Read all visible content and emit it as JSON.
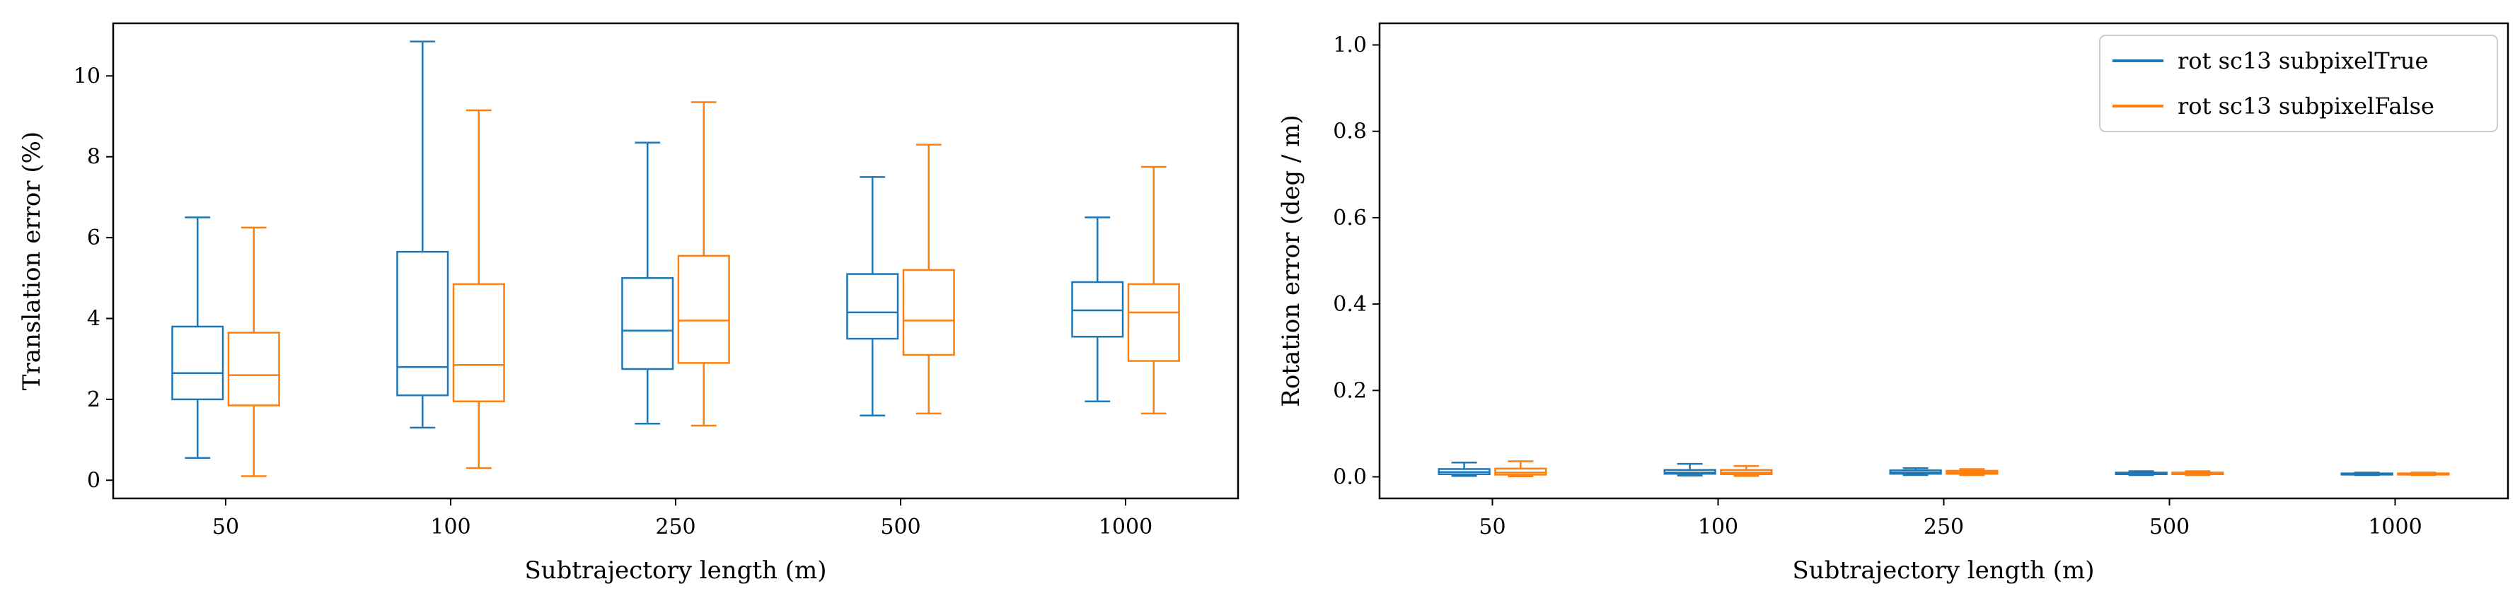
{
  "chart_data": [
    {
      "type": "box",
      "xlabel": "Subtrajectory length (m)",
      "ylabel": "Translation error (%)",
      "categories": [
        "50",
        "100",
        "250",
        "500",
        "1000"
      ],
      "ylim": [
        -0.45,
        11.3
      ],
      "yticks": [
        0,
        2,
        4,
        6,
        8,
        10
      ],
      "grid": false,
      "series": [
        {
          "color": "#1f77b4",
          "boxes": [
            {
              "min": 0.55,
              "q1": 2.0,
              "median": 2.65,
              "q3": 3.8,
              "max": 6.5
            },
            {
              "min": 1.3,
              "q1": 2.1,
              "median": 2.8,
              "q3": 5.65,
              "max": 10.85
            },
            {
              "min": 1.4,
              "q1": 2.75,
              "median": 3.7,
              "q3": 5.0,
              "max": 8.35
            },
            {
              "min": 1.6,
              "q1": 3.5,
              "median": 4.15,
              "q3": 5.1,
              "max": 7.5
            },
            {
              "min": 1.95,
              "q1": 3.55,
              "median": 4.2,
              "q3": 4.9,
              "max": 6.5
            }
          ]
        },
        {
          "color": "#ff7f0e",
          "boxes": [
            {
              "min": 0.1,
              "q1": 1.85,
              "median": 2.6,
              "q3": 3.65,
              "max": 6.25
            },
            {
              "min": 0.3,
              "q1": 1.95,
              "median": 2.85,
              "q3": 4.85,
              "max": 9.15
            },
            {
              "min": 1.35,
              "q1": 2.9,
              "median": 3.95,
              "q3": 5.55,
              "max": 9.35
            },
            {
              "min": 1.65,
              "q1": 3.1,
              "median": 3.95,
              "q3": 5.2,
              "max": 8.3
            },
            {
              "min": 1.65,
              "q1": 2.95,
              "median": 4.15,
              "q3": 4.85,
              "max": 7.75
            }
          ]
        }
      ]
    },
    {
      "type": "box",
      "xlabel": "Subtrajectory length (m)",
      "ylabel": "Rotation error (deg / m)",
      "categories": [
        "50",
        "100",
        "250",
        "500",
        "1000"
      ],
      "ylim": [
        -0.05,
        1.05
      ],
      "yticks": [
        "0.0",
        "0.2",
        "0.4",
        "0.6",
        "0.8",
        "1.0"
      ],
      "grid": false,
      "legend_position": "upper-right",
      "series": [
        {
          "name": "rot sc13 subpixelTrue",
          "color": "#1f77b4",
          "boxes": [
            {
              "min": 0.002,
              "q1": 0.006,
              "median": 0.011,
              "q3": 0.018,
              "max": 0.033
            },
            {
              "min": 0.003,
              "q1": 0.007,
              "median": 0.01,
              "q3": 0.016,
              "max": 0.03
            },
            {
              "min": 0.004,
              "q1": 0.007,
              "median": 0.01,
              "q3": 0.015,
              "max": 0.02
            },
            {
              "min": 0.004,
              "q1": 0.006,
              "median": 0.008,
              "q3": 0.01,
              "max": 0.013
            },
            {
              "min": 0.004,
              "q1": 0.005,
              "median": 0.006,
              "q3": 0.008,
              "max": 0.01
            }
          ]
        },
        {
          "name": "rot sc13 subpixelFalse",
          "color": "#ff7f0e",
          "boxes": [
            {
              "min": 0.001,
              "q1": 0.005,
              "median": 0.01,
              "q3": 0.019,
              "max": 0.036
            },
            {
              "min": 0.002,
              "q1": 0.006,
              "median": 0.01,
              "q3": 0.016,
              "max": 0.025
            },
            {
              "min": 0.004,
              "q1": 0.007,
              "median": 0.01,
              "q3": 0.014,
              "max": 0.018
            },
            {
              "min": 0.004,
              "q1": 0.006,
              "median": 0.008,
              "q3": 0.01,
              "max": 0.013
            },
            {
              "min": 0.004,
              "q1": 0.005,
              "median": 0.006,
              "q3": 0.008,
              "max": 0.01
            }
          ]
        }
      ]
    }
  ]
}
